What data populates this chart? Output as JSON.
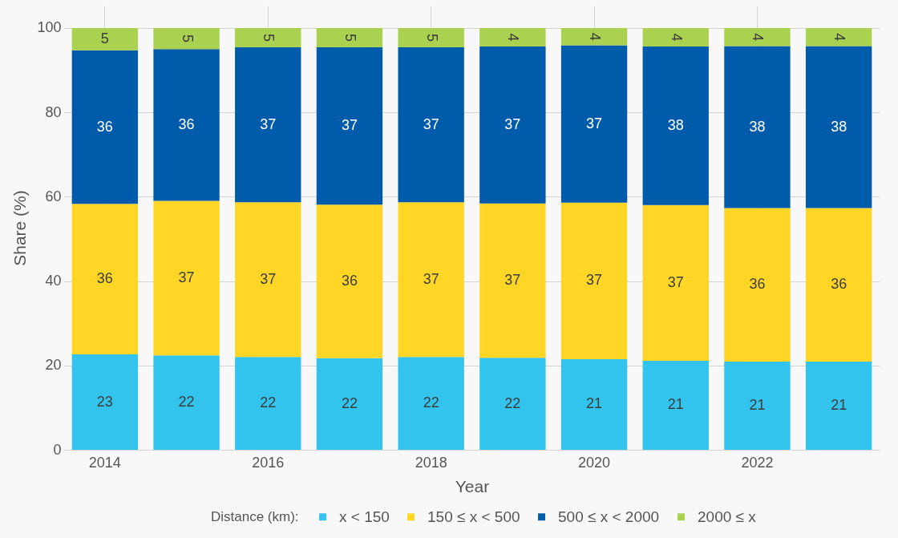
{
  "chart_data": {
    "type": "bar",
    "stacked": true,
    "xlabel": "Year",
    "ylabel": "Share (%)",
    "legend_title": "Distance (km):",
    "legend": "bottom",
    "grid": true,
    "categories": [
      "2014",
      null,
      "2016",
      null,
      "2018",
      null,
      "2020",
      null,
      "2022",
      null
    ],
    "ylim": [
      0,
      105.3
    ],
    "yticks": [
      0,
      20,
      40,
      60,
      80,
      100
    ],
    "series": [
      {
        "name": "x < 150",
        "color": "#33c4ed",
        "values": [
          22.6,
          22.4,
          22.0,
          21.7,
          22.0,
          21.8,
          21.5,
          21.1,
          20.9,
          20.9
        ],
        "value_labels": [
          "23",
          "22",
          "22",
          "22",
          "22",
          "22",
          "21",
          "21",
          "21",
          "21"
        ]
      },
      {
        "name": "150 ≤ x < 500",
        "color": "#ffd626",
        "values": [
          35.7,
          36.6,
          36.7,
          36.4,
          36.7,
          36.6,
          37.1,
          36.9,
          36.4,
          36.4
        ],
        "value_labels": [
          "36",
          "37",
          "37",
          "36",
          "37",
          "37",
          "37",
          "37",
          "36",
          "36"
        ]
      },
      {
        "name": "500 ≤ x < 2000",
        "color": "#005baa",
        "values": [
          36.4,
          36.0,
          36.7,
          37.3,
          36.7,
          37.2,
          37.3,
          37.6,
          38.4,
          38.4
        ],
        "value_labels": [
          "36",
          "36",
          "37",
          "37",
          "37",
          "37",
          "37",
          "38",
          "38",
          "38"
        ]
      },
      {
        "name": "2000 ≤ x",
        "color": "#aad14f",
        "values": [
          5.3,
          5.0,
          4.6,
          4.6,
          4.6,
          4.4,
          4.1,
          4.4,
          4.3,
          4.3
        ],
        "value_labels": [
          "5",
          "5",
          "5",
          "5",
          "5",
          "4",
          "4",
          "4",
          "4",
          "4"
        ]
      }
    ]
  }
}
